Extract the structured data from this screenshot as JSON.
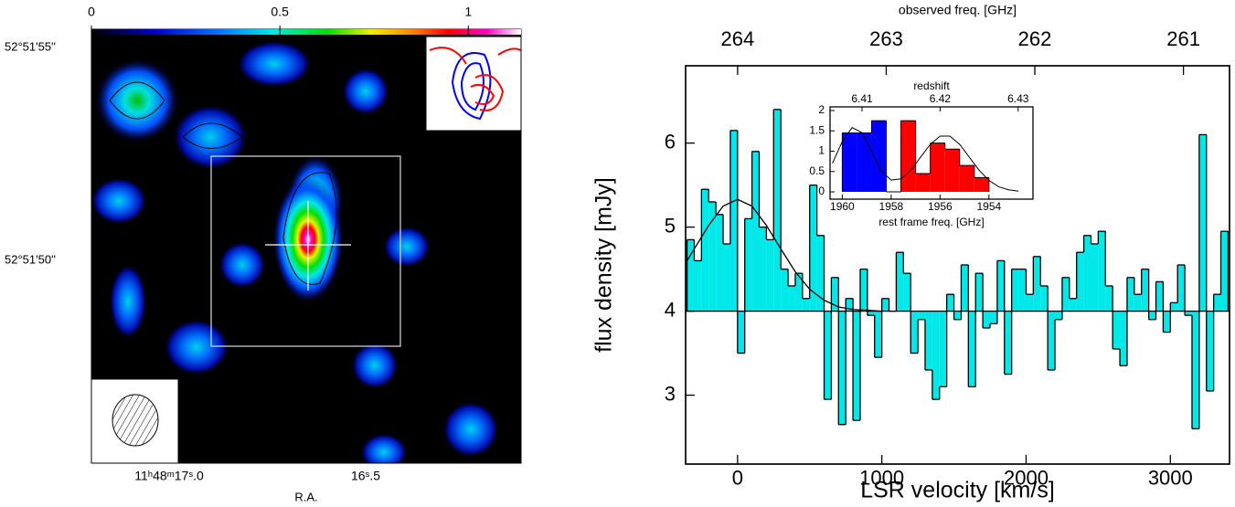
{
  "chart_data": [
    {
      "type": "image",
      "clim": [
        0,
        1.14
      ],
      "cticks": [
        0,
        0.5,
        1
      ],
      "ytick_labels": [
        "52°51'55''",
        "52°51'50''"
      ],
      "xtick_labels": [
        "11ʰ48ᵐ17ˢ.0",
        "16ˢ.5"
      ],
      "xlabel": "R.A."
    },
    {
      "type": "histogram",
      "color": "#00e8e8",
      "bins": [
        -350,
        -300,
        -250,
        -200,
        -150,
        -100,
        -50,
        0,
        50,
        100,
        150,
        200,
        250,
        300,
        350,
        400,
        450,
        500,
        550,
        600,
        650,
        700,
        750,
        800,
        850,
        900,
        950,
        1000,
        1050,
        1100,
        1150,
        1200,
        1250,
        1300,
        1350,
        1400,
        1450,
        1500,
        1550,
        1600,
        1650,
        1700,
        1750,
        1800,
        1850,
        1900,
        1950,
        2000,
        2050,
        2100,
        2150,
        2200,
        2250,
        2300,
        2350,
        2400,
        2450,
        2500,
        2550,
        2600,
        2650,
        2700,
        2750,
        2800,
        2850,
        2900,
        2950,
        3000,
        3050,
        3100,
        3150,
        3200,
        3250,
        3300,
        3350,
        3400
      ],
      "values": [
        4.85,
        4.6,
        5.45,
        5.3,
        5.15,
        4.8,
        6.15,
        3.5,
        5.1,
        5.9,
        5.0,
        4.85,
        6.4,
        4.5,
        4.3,
        4.45,
        4.15,
        5.5,
        4.9,
        2.95,
        4.4,
        2.65,
        4.15,
        2.7,
        4.5,
        3.95,
        3.45,
        4.15,
        4.0,
        4.7,
        4.45,
        3.5,
        3.9,
        3.3,
        2.95,
        3.1,
        4.2,
        3.9,
        4.55,
        3.1,
        4.45,
        3.8,
        3.85,
        4.6,
        3.25,
        4.5,
        4.5,
        4.2,
        4.65,
        4.3,
        3.3,
        3.9,
        4.4,
        4.15,
        4.7,
        4.9,
        4.8,
        4.95,
        4.3,
        3.55,
        3.35,
        4.4,
        4.2,
        4.5,
        3.9,
        4.35,
        3.75,
        4.1,
        4.55,
        3.95,
        2.6,
        6.1,
        3.05,
        4.2,
        4.95
      ],
      "baseline": 4,
      "fit": {
        "x": [
          -350,
          -300,
          -200,
          -100,
          0,
          100,
          200,
          300,
          400,
          500,
          600,
          700,
          800,
          900,
          1000
        ],
        "values": [
          4.6,
          4.74,
          5.02,
          5.25,
          5.33,
          5.25,
          5.02,
          4.74,
          4.47,
          4.26,
          4.13,
          4.05,
          4.02,
          4.01,
          4.0
        ]
      },
      "xlim": [
        -360,
        3410
      ],
      "ylim": [
        2.18,
        6.92
      ],
      "xticks": [
        0,
        1000,
        2000,
        3000
      ],
      "yticks": [
        3,
        4,
        5,
        6
      ],
      "x2lim": [
        264.35,
        260.69
      ],
      "x2ticks": [
        264,
        263,
        262,
        261
      ],
      "xlabel": "LSR velocity [km/s]",
      "ylabel": "flux density [mJy]",
      "x2label": "observed freq. [GHz]",
      "inset": {
        "type": "histogram",
        "bins": [
          1960.0,
          1959.4,
          1958.8,
          1958.2,
          1957.6,
          1957.0,
          1956.4,
          1955.8,
          1955.2,
          1954.6,
          1954.0
        ],
        "values": [
          1.45,
          1.45,
          1.75,
          0,
          1.75,
          0.45,
          1.2,
          1.05,
          0.65,
          0.35
        ],
        "bar_colors": [
          "#0000ff",
          "#0000ff",
          "#0000ff",
          "#ffffff",
          "#ff0000",
          "#ff0000",
          "#ff0000",
          "#ff0000",
          "#ff0000",
          "#ff0000"
        ],
        "fit": {
          "x": [
            1960.4,
            1960.0,
            1959.6,
            1959.2,
            1958.8,
            1958.4,
            1958.0,
            1957.6,
            1957.2,
            1956.8,
            1956.4,
            1956.0,
            1955.6,
            1955.2,
            1954.8,
            1954.4,
            1954.0,
            1953.6,
            1953.2,
            1952.8
          ],
          "values": [
            0.7,
            1.24,
            1.58,
            1.46,
            0.99,
            0.51,
            0.29,
            0.32,
            0.53,
            0.85,
            1.17,
            1.37,
            1.37,
            1.17,
            0.85,
            0.53,
            0.28,
            0.125,
            0.05,
            0.016
          ]
        },
        "xlim": [
          1960.5,
          1952.2
        ],
        "ylim": [
          -0.18,
          2.09
        ],
        "xticks": [
          1960,
          1958,
          1956,
          1954
        ],
        "yticks": [
          0,
          0.5,
          1,
          1.5,
          2
        ],
        "x2lim": [
          6.4059,
          6.4319
        ],
        "x2ticks": [
          6.41,
          6.42,
          6.43
        ],
        "xlabel": "rest frame freq. [GHz]",
        "x2label": "redshift"
      }
    }
  ]
}
